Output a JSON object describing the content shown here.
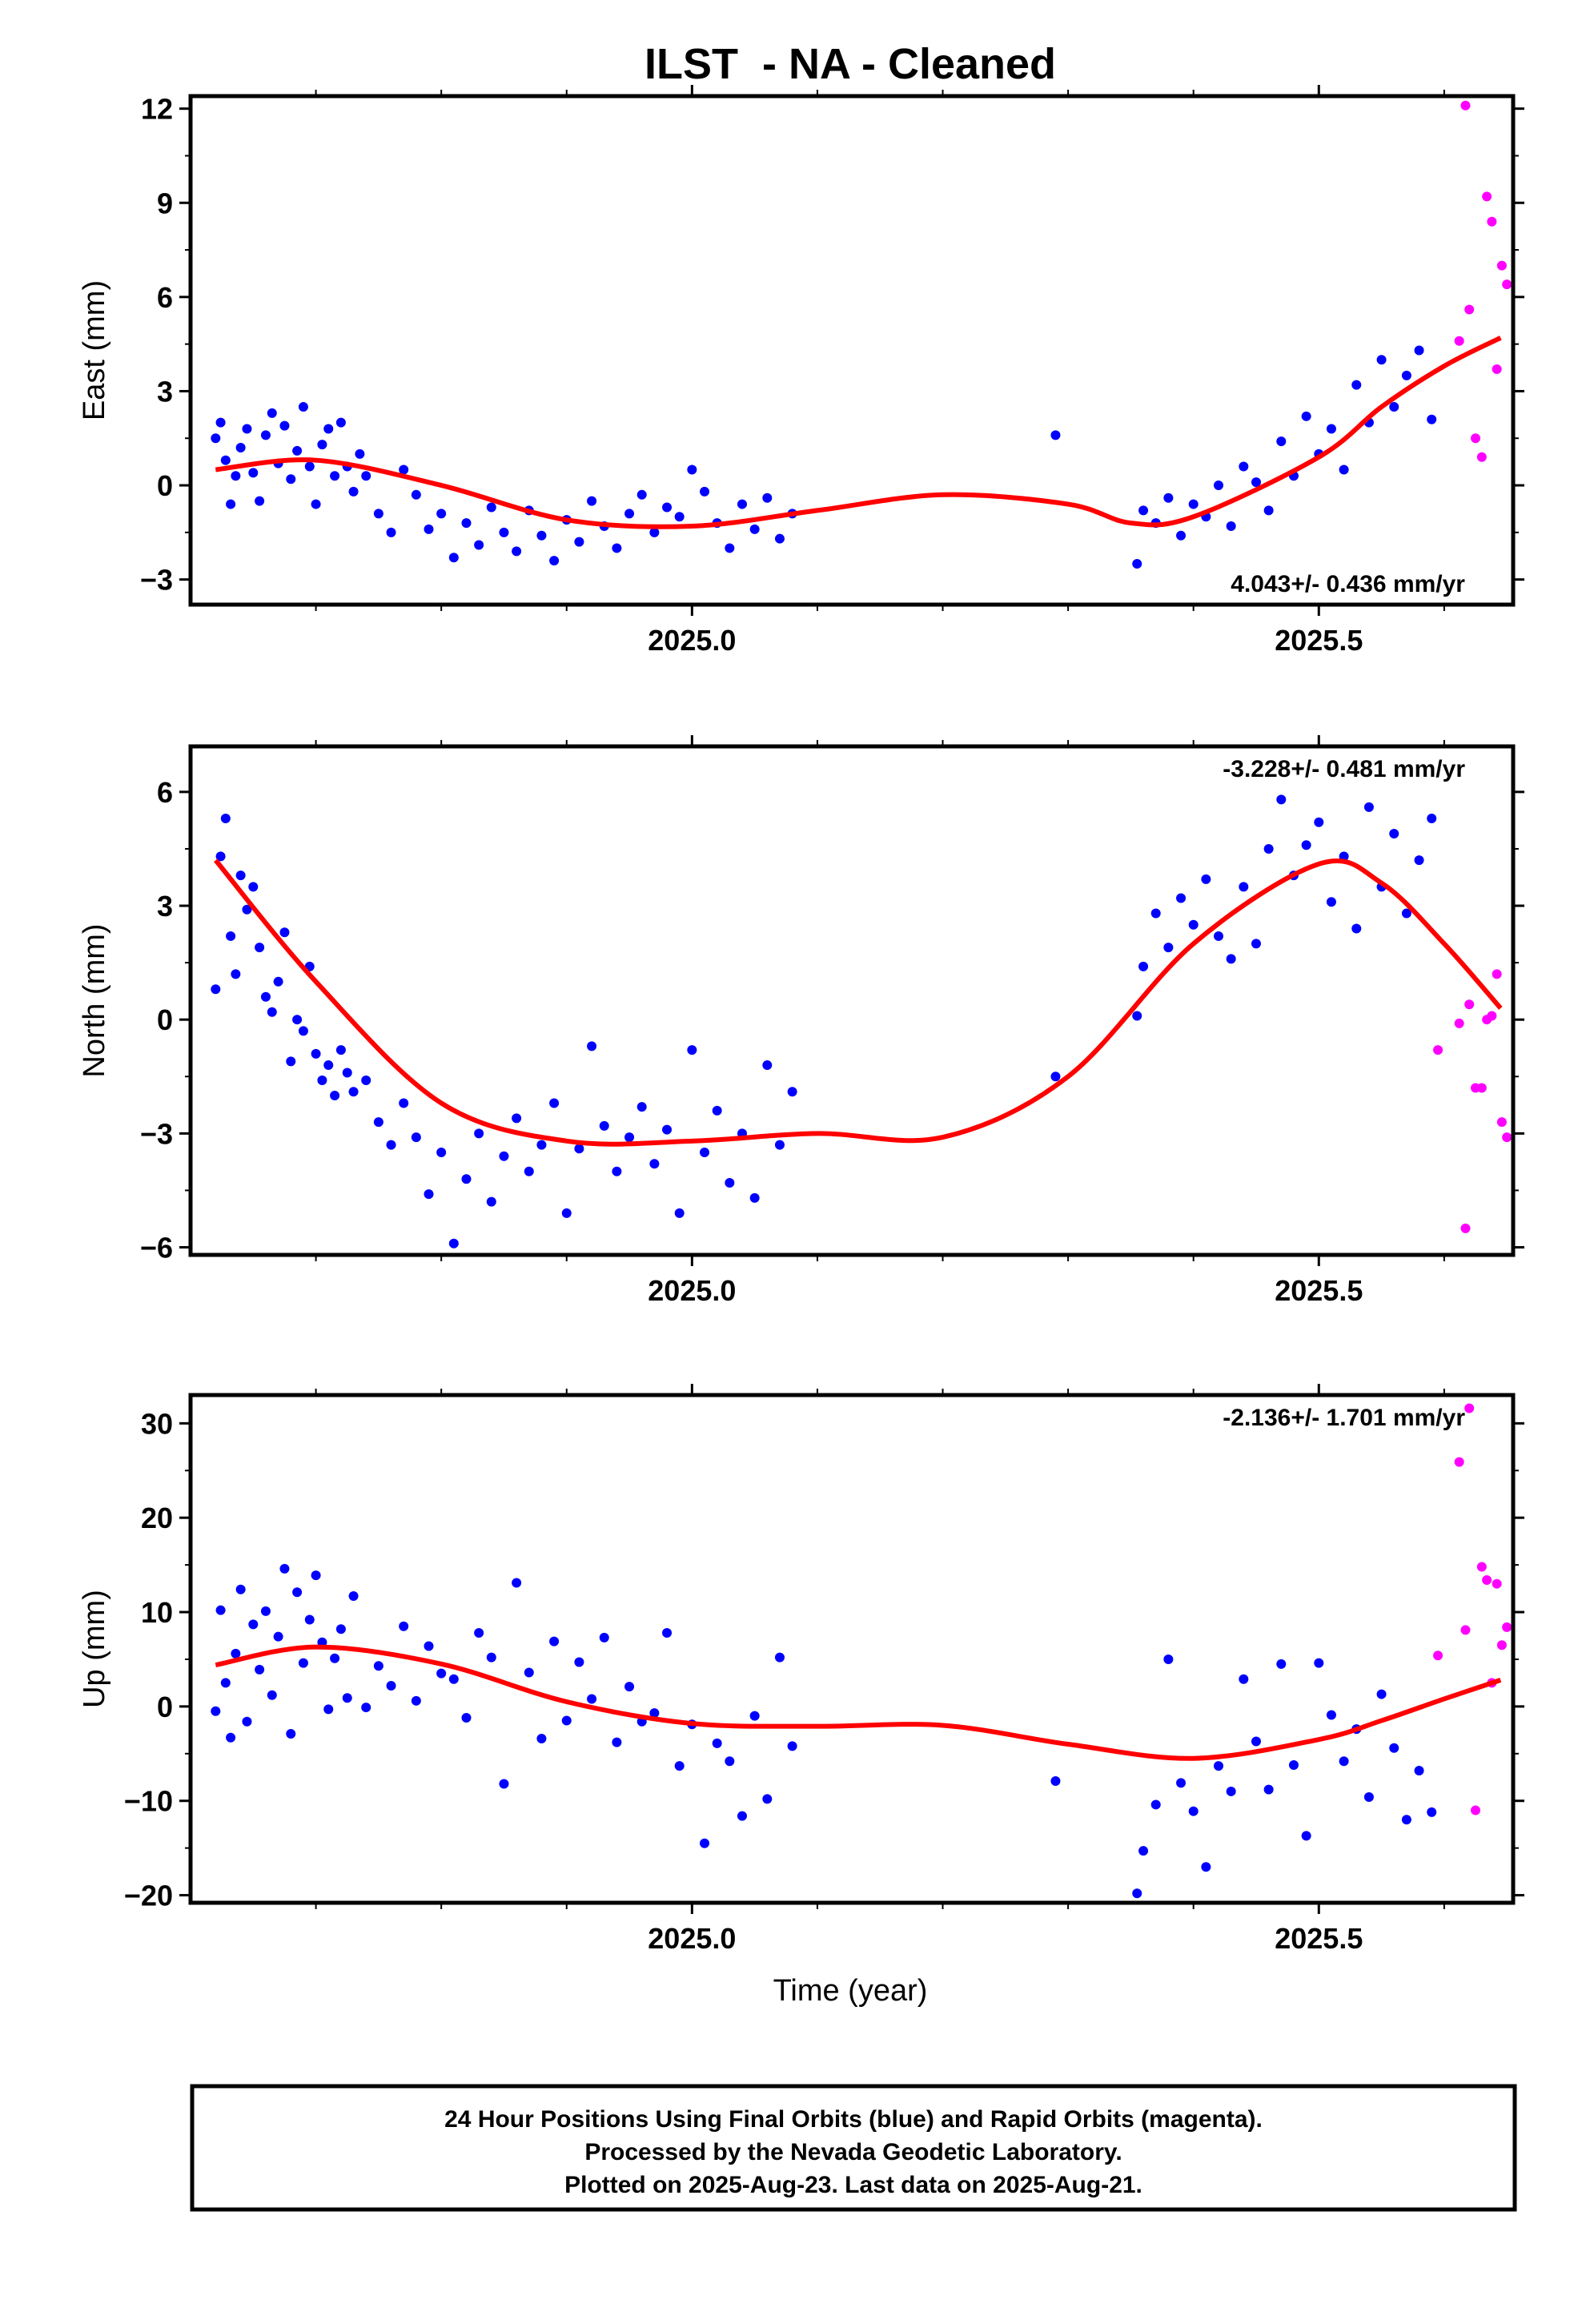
{
  "chart_data": {
    "title": "ILST  - NA - Cleaned",
    "xlabel": "Time (year)",
    "x_ticks": [
      "2025.0",
      "2025.5"
    ],
    "footer": [
      "24 Hour Positions Using Final Orbits (blue) and Rapid Orbits (magenta).",
      "Processed by the Nevada Geodetic Laboratory.",
      "Plotted on 2025-Aug-23. Last data on 2025-Aug-21."
    ],
    "colors": {
      "final": "#0000ff",
      "rapid": "#ff00ff",
      "fit": "#ff0000"
    },
    "panels": [
      {
        "type": "scatter",
        "ylabel": "East (mm)",
        "rate": "4.043+/- 0.436 mm/yr",
        "rate_position": "bottom-right",
        "xlim": [
          2024.6,
          2025.655
        ],
        "ylim": [
          -3.8,
          12.4
        ],
        "yticks": [
          "−3",
          "0",
          "3",
          "6",
          "9",
          "12"
        ],
        "ytick_values": [
          -3,
          0,
          3,
          6,
          9,
          12
        ],
        "fit_curve": {
          "x": [
            2024.62,
            2024.7,
            2024.8,
            2024.9,
            2025.0,
            2025.1,
            2025.2,
            2025.3,
            2025.35,
            2025.4,
            2025.5,
            2025.55,
            2025.6,
            2025.645
          ],
          "y": [
            0.5,
            0.8,
            0.0,
            -1.1,
            -1.3,
            -0.8,
            -0.3,
            -0.6,
            -1.2,
            -1.0,
            0.9,
            2.5,
            3.8,
            4.7
          ]
        },
        "series": [
          {
            "name": "Final Orbits (blue)",
            "x": [
              2024.62,
              2024.624,
              2024.628,
              2024.632,
              2024.636,
              2024.64,
              2024.645,
              2024.65,
              2024.655,
              2024.66,
              2024.665,
              2024.67,
              2024.675,
              2024.68,
              2024.685,
              2024.69,
              2024.695,
              2024.7,
              2024.705,
              2024.71,
              2024.715,
              2024.72,
              2024.725,
              2024.73,
              2024.735,
              2024.74,
              2024.75,
              2024.76,
              2024.77,
              2024.78,
              2024.79,
              2024.8,
              2024.81,
              2024.82,
              2024.83,
              2024.84,
              2024.85,
              2024.86,
              2024.87,
              2024.88,
              2024.89,
              2024.9,
              2024.91,
              2024.92,
              2024.93,
              2024.94,
              2024.95,
              2024.96,
              2024.97,
              2024.98,
              2024.99,
              2025.0,
              2025.01,
              2025.02,
              2025.03,
              2025.04,
              2025.05,
              2025.06,
              2025.07,
              2025.08,
              2025.29,
              2025.355,
              2025.36,
              2025.37,
              2025.38,
              2025.39,
              2025.4,
              2025.41,
              2025.42,
              2025.43,
              2025.44,
              2025.45,
              2025.46,
              2025.47,
              2025.48,
              2025.49,
              2025.5,
              2025.51,
              2025.52,
              2025.53,
              2025.54,
              2025.55,
              2025.56,
              2025.57,
              2025.58,
              2025.59
            ],
            "y": [
              1.5,
              2.0,
              0.8,
              -0.6,
              0.3,
              1.2,
              1.8,
              0.4,
              -0.5,
              1.6,
              2.3,
              0.7,
              1.9,
              0.2,
              1.1,
              2.5,
              0.6,
              -0.6,
              1.3,
              1.8,
              0.3,
              2.0,
              0.6,
              -0.2,
              1.0,
              0.3,
              -0.9,
              -1.5,
              0.5,
              -0.3,
              -1.4,
              -0.9,
              -2.3,
              -1.2,
              -1.9,
              -0.7,
              -1.5,
              -2.1,
              -0.8,
              -1.6,
              -2.4,
              -1.1,
              -1.8,
              -0.5,
              -1.3,
              -2.0,
              -0.9,
              -0.3,
              -1.5,
              -0.7,
              -1.0,
              0.5,
              -0.2,
              -1.2,
              -2.0,
              -0.6,
              -1.4,
              -0.4,
              -1.7,
              -0.9,
              1.6,
              -2.5,
              -0.8,
              -1.2,
              -0.4,
              -1.6,
              -0.6,
              -1.0,
              0.0,
              -1.3,
              0.6,
              0.1,
              -0.8,
              1.4,
              0.3,
              2.2,
              1.0,
              1.8,
              0.5,
              3.2,
              2.0,
              4.0,
              2.5,
              3.5,
              4.3,
              2.1
            ],
            "color": "#0000ff"
          },
          {
            "name": "Rapid Orbits (magenta)",
            "x": [
              2025.612,
              2025.617,
              2025.62,
              2025.625,
              2025.63,
              2025.634,
              2025.638,
              2025.642,
              2025.646,
              2025.65
            ],
            "y": [
              4.6,
              12.1,
              5.6,
              1.5,
              0.9,
              9.2,
              8.4,
              3.7,
              7.0,
              6.4
            ],
            "color": "#ff00ff"
          }
        ]
      },
      {
        "type": "scatter",
        "ylabel": "North (mm)",
        "rate": "-3.228+/- 0.481 mm/yr",
        "rate_position": "top-right",
        "xlim": [
          2024.6,
          2025.655
        ],
        "ylim": [
          -6.2,
          7.2
        ],
        "yticks": [
          "−6",
          "−3",
          "0",
          "3",
          "6"
        ],
        "ytick_values": [
          -6,
          -3,
          0,
          3,
          6
        ],
        "fit_curve": {
          "x": [
            2024.62,
            2024.7,
            2024.8,
            2024.9,
            2025.0,
            2025.1,
            2025.2,
            2025.3,
            2025.4,
            2025.5,
            2025.55,
            2025.6,
            2025.645
          ],
          "y": [
            4.2,
            1.0,
            -2.2,
            -3.2,
            -3.2,
            -3.0,
            -3.1,
            -1.5,
            2.0,
            4.1,
            3.6,
            2.0,
            0.3
          ]
        },
        "series": [
          {
            "name": "Final Orbits (blue)",
            "x": [
              2024.62,
              2024.624,
              2024.628,
              2024.632,
              2024.636,
              2024.64,
              2024.645,
              2024.65,
              2024.655,
              2024.66,
              2024.665,
              2024.67,
              2024.675,
              2024.68,
              2024.685,
              2024.69,
              2024.695,
              2024.7,
              2024.705,
              2024.71,
              2024.715,
              2024.72,
              2024.725,
              2024.73,
              2024.74,
              2024.75,
              2024.76,
              2024.77,
              2024.78,
              2024.79,
              2024.8,
              2024.81,
              2024.82,
              2024.83,
              2024.84,
              2024.85,
              2024.86,
              2024.87,
              2024.88,
              2024.89,
              2024.9,
              2024.91,
              2024.92,
              2024.93,
              2024.94,
              2024.95,
              2024.96,
              2024.97,
              2024.98,
              2024.99,
              2025.0,
              2025.01,
              2025.02,
              2025.03,
              2025.04,
              2025.05,
              2025.06,
              2025.07,
              2025.08,
              2025.29,
              2025.355,
              2025.36,
              2025.37,
              2025.38,
              2025.39,
              2025.4,
              2025.41,
              2025.42,
              2025.43,
              2025.44,
              2025.45,
              2025.46,
              2025.47,
              2025.48,
              2025.49,
              2025.5,
              2025.51,
              2025.52,
              2025.53,
              2025.54,
              2025.55,
              2025.56,
              2025.57,
              2025.58,
              2025.59
            ],
            "y": [
              0.8,
              4.3,
              5.3,
              2.2,
              1.2,
              3.8,
              2.9,
              3.5,
              1.9,
              0.6,
              0.2,
              1.0,
              2.3,
              -1.1,
              0.0,
              -0.3,
              1.4,
              -0.9,
              -1.6,
              -1.2,
              -2.0,
              -0.8,
              -1.4,
              -1.9,
              -1.6,
              -2.7,
              -3.3,
              -2.2,
              -3.1,
              -4.6,
              -3.5,
              -5.9,
              -4.2,
              -3.0,
              -4.8,
              -3.6,
              -2.6,
              -4.0,
              -3.3,
              -2.2,
              -5.1,
              -3.4,
              -0.7,
              -2.8,
              -4.0,
              -3.1,
              -2.3,
              -3.8,
              -2.9,
              -5.1,
              -0.8,
              -3.5,
              -2.4,
              -4.3,
              -3.0,
              -4.7,
              -1.2,
              -3.3,
              -1.9,
              -1.5,
              0.1,
              1.4,
              2.8,
              1.9,
              3.2,
              2.5,
              3.7,
              2.2,
              1.6,
              3.5,
              2.0,
              4.5,
              5.8,
              3.8,
              4.6,
              5.2,
              3.1,
              4.3,
              2.4,
              5.6,
              3.5,
              4.9,
              2.8,
              4.2,
              5.3
            ],
            "color": "#0000ff"
          },
          {
            "name": "Rapid Orbits (magenta)",
            "x": [
              2025.595,
              2025.612,
              2025.617,
              2025.62,
              2025.625,
              2025.63,
              2025.634,
              2025.638,
              2025.642,
              2025.646,
              2025.65
            ],
            "y": [
              -0.8,
              -0.1,
              -5.5,
              0.4,
              -1.8,
              -1.8,
              0.0,
              0.1,
              1.2,
              -2.7,
              -3.1
            ],
            "color": "#ff00ff"
          }
        ]
      },
      {
        "type": "scatter",
        "ylabel": "Up (mm)",
        "rate": "-2.136+/- 1.701 mm/yr",
        "rate_position": "top-right",
        "xlim": [
          2024.6,
          2025.655
        ],
        "ylim": [
          -20.8,
          33.0
        ],
        "yticks": [
          "−20",
          "−10",
          "0",
          "10",
          "20",
          "30"
        ],
        "ytick_values": [
          -20,
          -10,
          0,
          10,
          20,
          30
        ],
        "fit_curve": {
          "x": [
            2024.62,
            2024.7,
            2024.8,
            2024.9,
            2025.0,
            2025.1,
            2025.2,
            2025.3,
            2025.4,
            2025.5,
            2025.55,
            2025.6,
            2025.645
          ],
          "y": [
            4.4,
            6.3,
            4.5,
            0.5,
            -1.8,
            -2.1,
            -2.0,
            -4.0,
            -5.5,
            -3.5,
            -1.5,
            0.8,
            2.8
          ]
        },
        "series": [
          {
            "name": "Final Orbits (blue)",
            "x": [
              2024.62,
              2024.624,
              2024.628,
              2024.632,
              2024.636,
              2024.64,
              2024.645,
              2024.65,
              2024.655,
              2024.66,
              2024.665,
              2024.67,
              2024.675,
              2024.68,
              2024.685,
              2024.69,
              2024.695,
              2024.7,
              2024.705,
              2024.71,
              2024.715,
              2024.72,
              2024.725,
              2024.73,
              2024.74,
              2024.75,
              2024.76,
              2024.77,
              2024.78,
              2024.79,
              2024.8,
              2024.81,
              2024.82,
              2024.83,
              2024.84,
              2024.85,
              2024.86,
              2024.87,
              2024.88,
              2024.89,
              2024.9,
              2024.91,
              2024.92,
              2024.93,
              2024.94,
              2024.95,
              2024.96,
              2024.97,
              2024.98,
              2024.99,
              2025.0,
              2025.01,
              2025.02,
              2025.03,
              2025.04,
              2025.05,
              2025.06,
              2025.07,
              2025.08,
              2025.29,
              2025.355,
              2025.36,
              2025.37,
              2025.38,
              2025.39,
              2025.4,
              2025.41,
              2025.42,
              2025.43,
              2025.44,
              2025.45,
              2025.46,
              2025.47,
              2025.48,
              2025.49,
              2025.5,
              2025.51,
              2025.52,
              2025.53,
              2025.54,
              2025.55,
              2025.56,
              2025.57,
              2025.58,
              2025.59
            ],
            "y": [
              -0.5,
              10.2,
              2.5,
              -3.3,
              5.6,
              12.4,
              -1.6,
              8.7,
              3.9,
              10.1,
              1.2,
              7.4,
              14.6,
              -2.9,
              12.1,
              4.6,
              9.2,
              13.9,
              6.8,
              -0.3,
              5.1,
              8.2,
              0.9,
              11.7,
              -0.1,
              4.3,
              2.2,
              8.5,
              0.6,
              6.4,
              3.5,
              2.9,
              -1.2,
              7.8,
              5.2,
              -8.2,
              13.1,
              3.6,
              -3.4,
              6.9,
              -1.5,
              4.7,
              0.8,
              7.3,
              -3.8,
              2.1,
              -1.6,
              -0.7,
              7.8,
              -6.3,
              -1.9,
              -14.5,
              -3.9,
              -5.8,
              -11.6,
              -1.0,
              -9.8,
              5.2,
              -4.2,
              -7.9,
              -19.8,
              -15.3,
              -10.4,
              5.0,
              -8.1,
              -11.1,
              -17.0,
              -6.3,
              -9.0,
              2.9,
              -3.7,
              -8.8,
              4.5,
              -6.2,
              -13.7,
              4.6,
              -0.9,
              -5.8,
              -2.4,
              -9.6,
              1.3,
              -4.4,
              -12.0,
              -6.8,
              -11.2
            ],
            "color": "#0000ff"
          },
          {
            "name": "Rapid Orbits (magenta)",
            "x": [
              2025.595,
              2025.612,
              2025.617,
              2025.62,
              2025.625,
              2025.63,
              2025.634,
              2025.638,
              2025.642,
              2025.646,
              2025.65
            ],
            "y": [
              5.4,
              25.9,
              8.1,
              31.6,
              -11.0,
              14.8,
              13.4,
              2.5,
              13.0,
              6.5,
              8.4
            ],
            "color": "#ff00ff"
          }
        ]
      }
    ]
  }
}
